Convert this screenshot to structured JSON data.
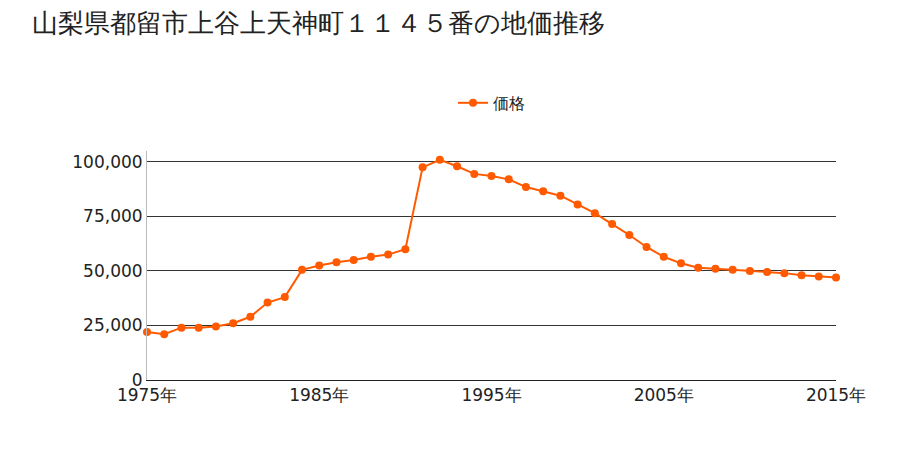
{
  "chart_data": {
    "type": "line",
    "title": "山梨県都留市上谷上天神町１１４５番の地価推移",
    "x": [
      1975,
      1976,
      1977,
      1978,
      1979,
      1980,
      1981,
      1982,
      1983,
      1984,
      1985,
      1986,
      1987,
      1988,
      1989,
      1990,
      1991,
      1992,
      1993,
      1994,
      1995,
      1996,
      1997,
      1998,
      1999,
      2000,
      2001,
      2002,
      2003,
      2004,
      2005,
      2006,
      2007,
      2008,
      2009,
      2010,
      2011,
      2012,
      2013,
      2014,
      2015
    ],
    "series": [
      {
        "name": "価格",
        "color": "#ff5a00",
        "marker": "circle",
        "values": [
          22000,
          21000,
          24000,
          24000,
          24500,
          26000,
          29000,
          35500,
          38000,
          50500,
          52500,
          54000,
          55000,
          56500,
          57500,
          60000,
          97500,
          101000,
          98000,
          94500,
          93500,
          92000,
          88500,
          86500,
          84500,
          80500,
          76500,
          71500,
          66500,
          61000,
          56500,
          53500,
          51500,
          51000,
          50500,
          50000,
          49500,
          49000,
          48000,
          47500,
          47000
        ]
      }
    ],
    "xlim": [
      1975,
      2015
    ],
    "xticks": [
      {
        "value": 1975,
        "label": "1975年"
      },
      {
        "value": 1985,
        "label": "1985年"
      },
      {
        "value": 1995,
        "label": "1995年"
      },
      {
        "value": 2005,
        "label": "2005年"
      },
      {
        "value": 2015,
        "label": "2015年"
      }
    ],
    "ylim": [
      0,
      105000
    ],
    "yticks": [
      0,
      {
        "value": 25000,
        "label": "25,000"
      },
      {
        "value": 50000,
        "label": "50,000"
      },
      {
        "value": 75000,
        "label": "75,000"
      },
      {
        "value": 100000,
        "label": "100,000"
      }
    ],
    "grid": true,
    "legend": "top"
  }
}
